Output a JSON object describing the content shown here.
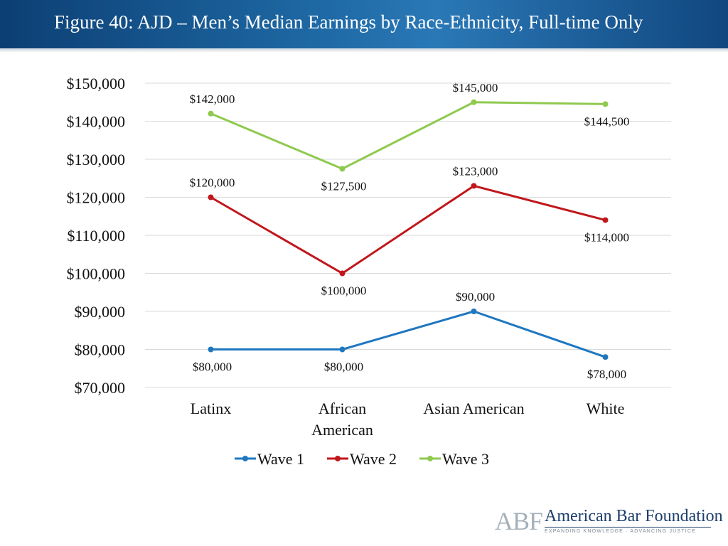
{
  "header": {
    "title": "Figure 40: AJD – Men’s Median Earnings by Race-Ethnicity, Full-time Only"
  },
  "colors": {
    "header_dark": "#0c3f73",
    "gridline": "#d9d9d9",
    "wave1": "#1f77c0",
    "wave2": "#c0171c",
    "wave3": "#8fc94f"
  },
  "chart_data": {
    "type": "line",
    "title": "Figure 40: AJD – Men’s Median Earnings by Race-Ethnicity, Full-time Only",
    "categories": [
      "Latinx",
      "African American",
      "Asian American",
      "White"
    ],
    "category_lines": [
      [
        "Latinx"
      ],
      [
        "African",
        "American"
      ],
      [
        "Asian American"
      ],
      [
        "White"
      ]
    ],
    "ylim": [
      70000,
      150000
    ],
    "yticks": [
      70000,
      80000,
      90000,
      100000,
      110000,
      120000,
      130000,
      140000,
      150000
    ],
    "ytick_labels": [
      "$70,000",
      "$80,000",
      "$90,000",
      "$100,000",
      "$110,000",
      "$120,000",
      "$130,000",
      "$140,000",
      "$150,000"
    ],
    "grid": true,
    "legend_position": "bottom",
    "series": [
      {
        "name": "Wave 1",
        "color": "#1f77c0",
        "values": [
          80000,
          80000,
          90000,
          78000
        ],
        "labels": [
          "$80,000",
          "$80,000",
          "$90,000",
          "$78,000"
        ],
        "label_pos": [
          "below",
          "below",
          "above",
          "below"
        ]
      },
      {
        "name": "Wave 2",
        "color": "#c0171c",
        "values": [
          120000,
          100000,
          123000,
          114000
        ],
        "labels": [
          "$120,000",
          "$100,000",
          "$123,000",
          "$114,000"
        ],
        "label_pos": [
          "above",
          "below",
          "above",
          "below"
        ]
      },
      {
        "name": "Wave 3",
        "color": "#8fc94f",
        "values": [
          142000,
          127500,
          145000,
          144500
        ],
        "labels": [
          "$142,000",
          "$127,500",
          "$145,000",
          "$144,500"
        ],
        "label_pos": [
          "above",
          "below",
          "above",
          "below"
        ]
      }
    ]
  },
  "logo": {
    "initials": "ABF",
    "name": "American Bar Foundation",
    "tagline": "EXPANDING KNOWLEDGE · ADVANCING JUSTICE"
  }
}
